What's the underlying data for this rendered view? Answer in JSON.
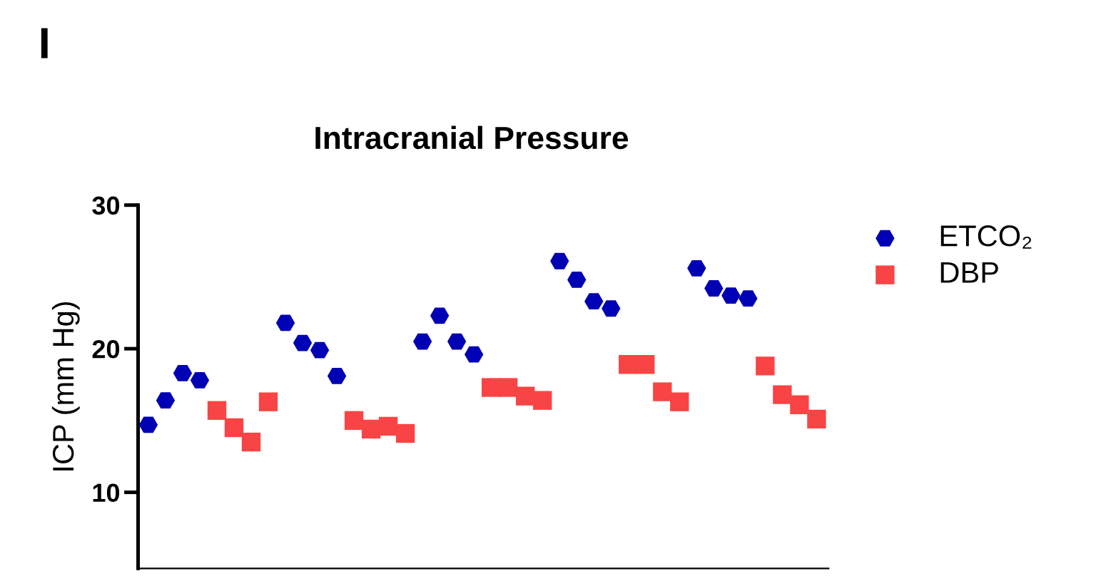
{
  "chart_data": {
    "type": "scatter",
    "title": "Intracranial Pressure",
    "ylabel": "ICP (mm Hg)",
    "annotations": [
      "I"
    ],
    "categories": [
      null,
      null,
      null,
      null,
      null,
      null,
      null,
      null,
      null,
      null,
      null,
      null,
      null,
      null,
      null,
      null,
      null,
      null,
      null,
      null,
      null,
      null,
      null,
      null,
      null,
      null,
      null,
      null,
      null,
      null,
      null,
      null,
      null,
      null,
      null,
      null,
      null,
      null,
      null,
      null
    ],
    "series": [
      {
        "name": "ETCO₂",
        "color": "#0000b4",
        "marker": "circle",
        "values": [
          14.7,
          16.4,
          18.3,
          17.8,
          null,
          null,
          null,
          null,
          21.8,
          20.4,
          19.9,
          18.1,
          null,
          null,
          null,
          null,
          20.5,
          22.3,
          20.5,
          19.6,
          null,
          null,
          null,
          null,
          26.1,
          24.8,
          23.3,
          22.8,
          null,
          null,
          null,
          null,
          25.6,
          24.2,
          23.7,
          23.5,
          null,
          null,
          null,
          null
        ]
      },
      {
        "name": "DBP",
        "color": "#f84444",
        "marker": "square",
        "values": [
          null,
          null,
          null,
          null,
          15.7,
          14.5,
          13.5,
          16.3,
          null,
          null,
          null,
          null,
          15.0,
          14.4,
          14.6,
          14.1,
          null,
          null,
          null,
          null,
          17.3,
          17.3,
          16.7,
          16.4,
          null,
          null,
          null,
          null,
          18.9,
          18.9,
          17.0,
          16.3,
          null,
          null,
          null,
          null,
          18.8,
          16.8,
          16.1,
          15.1
        ]
      }
    ],
    "ylim": [
      4.7,
      30
    ],
    "yticks": [
      10,
      20,
      30
    ],
    "tick_labels": "y",
    "grid": false,
    "legend": "top right"
  }
}
